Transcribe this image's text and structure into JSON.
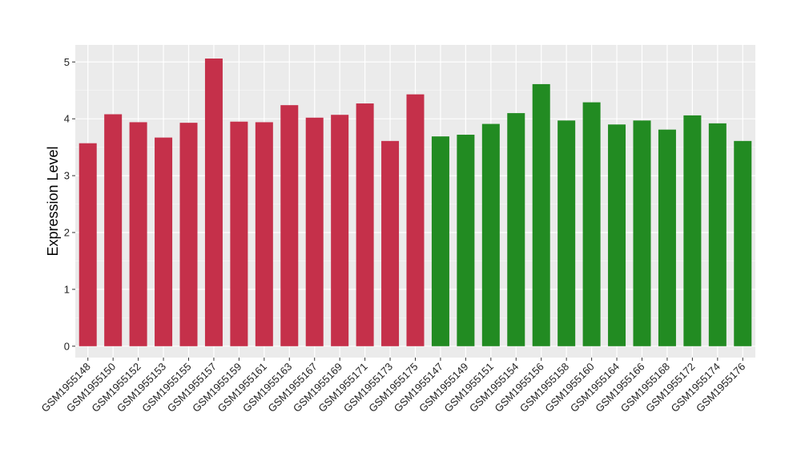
{
  "chart_data": {
    "type": "bar",
    "title": "",
    "xlabel": "",
    "ylabel": "Expression Level",
    "ylim": [
      -0.2,
      5.3
    ],
    "yticks": [
      0,
      1,
      2,
      3,
      4,
      5
    ],
    "grid": true,
    "legend": "none",
    "categories": [
      "GSM1955148",
      "GSM1955150",
      "GSM1955152",
      "GSM1955153",
      "GSM1955155",
      "GSM1955157",
      "GSM1955159",
      "GSM1955161",
      "GSM1955163",
      "GSM1955167",
      "GSM1955169",
      "GSM1955171",
      "GSM1955173",
      "GSM1955175",
      "GSM1955147",
      "GSM1955149",
      "GSM1955151",
      "GSM1955154",
      "GSM1955156",
      "GSM1955158",
      "GSM1955160",
      "GSM1955164",
      "GSM1955166",
      "GSM1955168",
      "GSM1955172",
      "GSM1955174",
      "GSM1955176"
    ],
    "values": [
      3.57,
      4.08,
      3.94,
      3.67,
      3.93,
      5.06,
      3.95,
      3.94,
      4.24,
      4.02,
      4.07,
      4.27,
      3.61,
      4.43,
      3.69,
      3.72,
      3.91,
      4.1,
      4.61,
      3.97,
      4.29,
      3.9,
      3.97,
      3.81,
      4.06,
      3.92,
      3.61
    ],
    "group_sizes": [
      14,
      13
    ],
    "colors": {
      "group1": "#c5304a",
      "group2": "#228b22",
      "panel_bg": "#ebebeb",
      "grid_major": "#ffffff",
      "axis_text": "#222222"
    }
  }
}
